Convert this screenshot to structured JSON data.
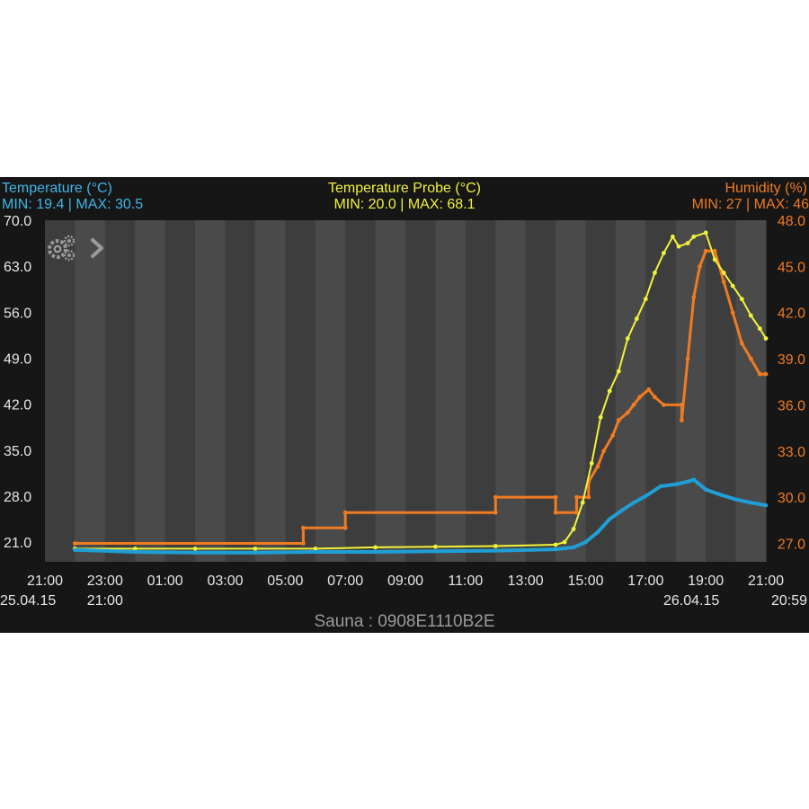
{
  "chart_data": {
    "type": "line",
    "title": "Sauna : 0908E1110B2E",
    "headers": {
      "left": {
        "name": "Temperature (°C)",
        "stats": "MIN: 19.4 | MAX: 30.5"
      },
      "center": {
        "name": "Temperature Probe (°C)",
        "stats": "MIN: 20.0 | MAX: 68.1"
      },
      "right": {
        "name": "Humidity (%)",
        "stats": "MIN: 27 | MAX: 46"
      }
    },
    "x_ticks": [
      {
        "t": 0,
        "label": "21:00",
        "sub": "25.04.15"
      },
      {
        "t": 2,
        "label": "23:00",
        "sub": "21:00"
      },
      {
        "t": 4,
        "label": "01:00"
      },
      {
        "t": 6,
        "label": "03:00"
      },
      {
        "t": 8,
        "label": "05:00"
      },
      {
        "t": 10,
        "label": "07:00"
      },
      {
        "t": 12,
        "label": "09:00"
      },
      {
        "t": 14,
        "label": "11:00"
      },
      {
        "t": 16,
        "label": "13:00"
      },
      {
        "t": 18,
        "label": "15:00"
      },
      {
        "t": 20,
        "label": "17:00"
      },
      {
        "t": 22,
        "label": "19:00",
        "sub": "26.04.15"
      },
      {
        "t": 24,
        "label": "21:00",
        "sub": "20:59"
      }
    ],
    "x_range": [
      0,
      24
    ],
    "y_left": {
      "range": [
        18.0,
        70.0
      ],
      "ticks": [
        "70.0",
        "63.0",
        "56.0",
        "49.0",
        "42.0",
        "35.0",
        "28.0",
        "21.0"
      ],
      "values": [
        70,
        63,
        56,
        49,
        42,
        35,
        28,
        21
      ]
    },
    "y_right": {
      "range": [
        25.8,
        48.0
      ],
      "ticks": [
        "48.0",
        "45.0",
        "42.0",
        "39.0",
        "36.0",
        "33.0",
        "30.0",
        "27.0"
      ],
      "values": [
        48,
        45,
        42,
        39,
        36,
        33,
        30,
        27
      ]
    },
    "series": [
      {
        "name": "Temperature (°C)",
        "axis": "left",
        "color": "#1f9fd6",
        "points": [
          [
            1,
            19.8
          ],
          [
            3,
            19.5
          ],
          [
            5,
            19.4
          ],
          [
            7,
            19.4
          ],
          [
            9,
            19.5
          ],
          [
            11,
            19.5
          ],
          [
            13,
            19.6
          ],
          [
            15,
            19.7
          ],
          [
            17,
            19.9
          ],
          [
            17.6,
            20.2
          ],
          [
            18,
            21.0
          ],
          [
            18.4,
            22.5
          ],
          [
            18.8,
            24.5
          ],
          [
            19.2,
            25.8
          ],
          [
            19.6,
            27.0
          ],
          [
            20.0,
            28.0
          ],
          [
            20.5,
            29.5
          ],
          [
            21.0,
            29.8
          ],
          [
            21.4,
            30.2
          ],
          [
            21.6,
            30.5
          ],
          [
            22.0,
            29.0
          ],
          [
            22.5,
            28.2
          ],
          [
            23.0,
            27.5
          ],
          [
            23.5,
            27.0
          ],
          [
            24.0,
            26.6
          ]
        ]
      },
      {
        "name": "Temperature Probe (°C)",
        "axis": "left",
        "color": "#f2f23a",
        "points": [
          [
            1,
            20.0
          ],
          [
            3,
            20.0
          ],
          [
            5,
            20.0
          ],
          [
            7,
            20.0
          ],
          [
            9,
            20.0
          ],
          [
            11,
            20.2
          ],
          [
            13,
            20.3
          ],
          [
            15,
            20.4
          ],
          [
            17,
            20.6
          ],
          [
            17.3,
            21.0
          ],
          [
            17.6,
            23.0
          ],
          [
            17.9,
            27.0
          ],
          [
            18.2,
            33.0
          ],
          [
            18.5,
            40.0
          ],
          [
            18.8,
            44.0
          ],
          [
            19.1,
            47.0
          ],
          [
            19.4,
            52.0
          ],
          [
            19.7,
            55.0
          ],
          [
            20.0,
            58.0
          ],
          [
            20.3,
            62.0
          ],
          [
            20.6,
            65.0
          ],
          [
            20.9,
            67.5
          ],
          [
            21.1,
            66.0
          ],
          [
            21.4,
            66.5
          ],
          [
            21.6,
            67.5
          ],
          [
            22.0,
            68.1
          ],
          [
            22.3,
            64.0
          ],
          [
            22.6,
            62.0
          ],
          [
            22.9,
            60.0
          ],
          [
            23.2,
            58.0
          ],
          [
            23.5,
            55.5
          ],
          [
            23.8,
            53.5
          ],
          [
            24.0,
            52.0
          ]
        ]
      },
      {
        "name": "Humidity (%)",
        "axis": "right",
        "color": "#ef7b22",
        "points": [
          [
            1,
            27
          ],
          [
            8.6,
            27
          ],
          [
            8.6,
            28
          ],
          [
            10.0,
            28
          ],
          [
            10.0,
            29
          ],
          [
            15.0,
            29
          ],
          [
            15.0,
            30
          ],
          [
            17.0,
            30
          ],
          [
            17.0,
            29
          ],
          [
            17.7,
            29
          ],
          [
            17.7,
            30
          ],
          [
            18.1,
            30
          ],
          [
            18.1,
            31
          ],
          [
            18.4,
            32
          ],
          [
            18.6,
            33
          ],
          [
            18.9,
            34
          ],
          [
            19.1,
            35
          ],
          [
            19.4,
            35.5
          ],
          [
            19.6,
            36
          ],
          [
            19.8,
            36.5
          ],
          [
            20.1,
            37
          ],
          [
            20.3,
            36.5
          ],
          [
            20.6,
            36
          ],
          [
            21.2,
            36
          ],
          [
            21.2,
            35
          ],
          [
            21.4,
            39
          ],
          [
            21.6,
            43
          ],
          [
            21.8,
            45
          ],
          [
            22.0,
            46
          ],
          [
            22.3,
            46
          ],
          [
            22.6,
            44
          ],
          [
            22.9,
            42
          ],
          [
            23.2,
            40
          ],
          [
            23.5,
            39
          ],
          [
            23.8,
            38
          ],
          [
            24.0,
            38
          ]
        ]
      }
    ]
  }
}
